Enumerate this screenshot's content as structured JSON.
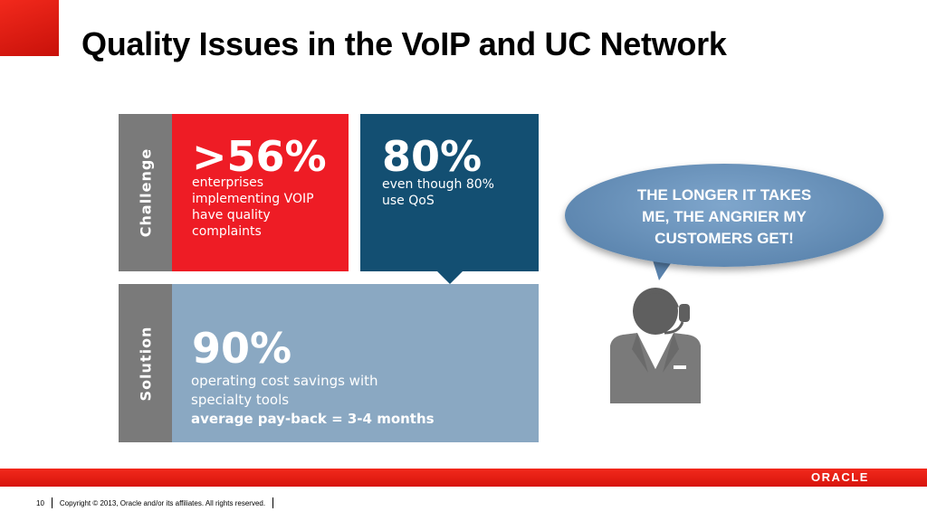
{
  "slide": {
    "title": "Quality Issues in the VoIP and UC Network",
    "page_number": "10",
    "copyright": "Copyright © 2013, Oracle and/or its affiliates. All rights reserved.",
    "logo": "ORACLE"
  },
  "challenge": {
    "label": "Challenge",
    "stat1": {
      "value": ">56%",
      "lines": [
        "enterprises",
        "implementing VOIP",
        "have quality",
        "complaints"
      ]
    },
    "stat2": {
      "value": "80%",
      "lines": [
        "even though 80%",
        "use QoS"
      ]
    }
  },
  "solution": {
    "label": "Solution",
    "value": "90%",
    "lines": [
      "operating cost savings with",
      "specialty tools"
    ],
    "bold_line": "average pay-back = 3-4 months"
  },
  "speech_bubble": {
    "lines": [
      "THE LONGER IT TAKES",
      "ME, THE ANGRIER MY",
      "CUSTOMERS GET!"
    ]
  },
  "colors": {
    "red": "#ee1c25",
    "navy": "#134f72",
    "light_blue": "#8aa8c2",
    "gray": "#7a7a7a"
  },
  "icons": [
    "customer-service-agent-icon",
    "speech-bubble"
  ]
}
